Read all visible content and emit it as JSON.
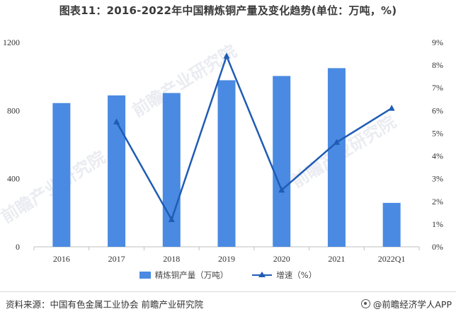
{
  "title": "图表11：2016-2022年中国精炼铜产量及变化趋势(单位：万吨，%)",
  "chart_data": {
    "type": "bar",
    "categories": [
      "2016",
      "2017",
      "2018",
      "2019",
      "2020",
      "2021",
      "2022Q1"
    ],
    "series": [
      {
        "name": "精炼铜产量（万吨）",
        "type": "bar",
        "axis": "left",
        "color": "#4a8ae2",
        "values": [
          844,
          889,
          903,
          978,
          1003,
          1049,
          258
        ]
      },
      {
        "name": "增速（%）",
        "type": "line",
        "axis": "right",
        "color": "#1f5cb4",
        "values": [
          null,
          5.5,
          1.2,
          8.4,
          2.5,
          4.6,
          6.1
        ]
      }
    ],
    "y_left": {
      "ylim": [
        0,
        1200
      ],
      "ticks": [
        "0",
        "400",
        "800",
        "1200"
      ],
      "tick_values": [
        0,
        400,
        800,
        1200
      ]
    },
    "y_right": {
      "ylim": [
        0,
        9
      ],
      "ticks": [
        "0%",
        "1%",
        "2%",
        "3%",
        "4%",
        "5%",
        "6%",
        "7%",
        "8%",
        "9%"
      ],
      "tick_values": [
        0,
        1,
        2,
        3,
        4,
        5,
        6,
        7,
        8,
        9
      ]
    },
    "legend_position": "bottom",
    "grid": false
  },
  "watermark_text": "前瞻产业研究院",
  "footer": {
    "source": "资料来源：中国有色金属工业协会 前瞻产业研究院",
    "brand": "@前瞻经济学人APP"
  }
}
